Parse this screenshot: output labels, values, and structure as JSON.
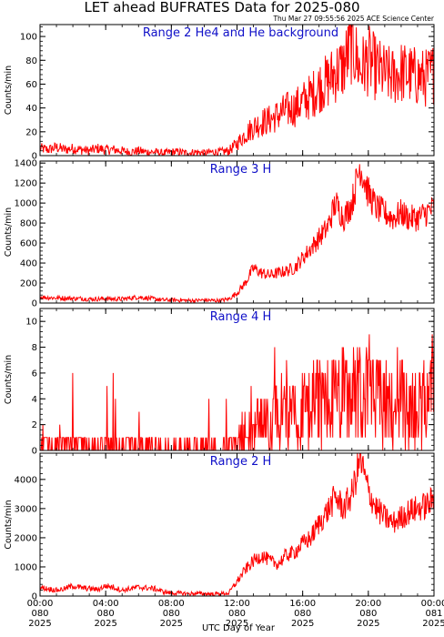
{
  "title": "LET ahead BUFRATES Data for 2025-080",
  "timestamp": "Thu Mar 27 09:55:56 2025 ACE Science Center",
  "xlabel": "UTC Day of Year",
  "colors": {
    "trace": "#ff0000",
    "panel_label": "#1010c8",
    "axes": "#000000"
  },
  "xticks": [
    {
      "t": 0,
      "time": "00:00",
      "doy": "080",
      "year": "2025"
    },
    {
      "t": 4,
      "time": "04:00",
      "doy": "080",
      "year": "2025"
    },
    {
      "t": 8,
      "time": "08:00",
      "doy": "080",
      "year": "2025"
    },
    {
      "t": 12,
      "time": "12:00",
      "doy": "080",
      "year": "2025"
    },
    {
      "t": 16,
      "time": "16:00",
      "doy": "080",
      "year": "2025"
    },
    {
      "t": 20,
      "time": "20:00",
      "doy": "080",
      "year": "2025"
    },
    {
      "t": 24,
      "time": "00:00",
      "doy": "081",
      "year": "2025"
    }
  ],
  "chart_data": [
    {
      "type": "line",
      "title": "Range 2 He4 and He background",
      "ylabel": "Counts/min",
      "ylim": [
        0,
        110
      ],
      "yticks": [
        0,
        20,
        40,
        60,
        80,
        100
      ],
      "xlim": [
        0,
        24
      ],
      "x": [
        0,
        0.5,
        1,
        1.5,
        2,
        2.5,
        3,
        3.5,
        4,
        4.5,
        5,
        5.5,
        6,
        6.5,
        7,
        7.5,
        8,
        8.5,
        9,
        9.5,
        10,
        10.5,
        11,
        11.5,
        12,
        12.5,
        13,
        13.5,
        14,
        14.5,
        15,
        15.5,
        16,
        16.5,
        17,
        17.5,
        18,
        18.5,
        19,
        19.5,
        20,
        20.5,
        21,
        21.5,
        22,
        22.5,
        23,
        23.5,
        24
      ],
      "values": [
        6,
        5,
        7,
        5,
        6,
        5,
        4,
        6,
        5,
        5,
        4,
        3,
        4,
        3,
        3,
        2,
        3,
        3,
        2,
        3,
        2,
        3,
        3,
        4,
        10,
        18,
        24,
        28,
        30,
        34,
        38,
        40,
        45,
        50,
        58,
        62,
        70,
        75,
        95,
        72,
        80,
        73,
        68,
        66,
        70,
        68,
        66,
        65,
        70
      ]
    },
    {
      "type": "line",
      "title": "Range 3 H",
      "ylabel": "Counts/min",
      "ylim": [
        0,
        1420
      ],
      "yticks": [
        0,
        200,
        400,
        600,
        800,
        1000,
        1200,
        1400
      ],
      "xlim": [
        0,
        24
      ],
      "x": [
        0,
        0.5,
        1,
        1.5,
        2,
        2.5,
        3,
        3.5,
        4,
        4.5,
        5,
        5.5,
        6,
        6.5,
        7,
        7.5,
        8,
        8.5,
        9,
        9.5,
        10,
        10.5,
        11,
        11.5,
        12,
        12.5,
        13,
        13.5,
        14,
        14.5,
        15,
        15.5,
        16,
        16.5,
        17,
        17.5,
        18,
        18.5,
        19,
        19.5,
        20,
        20.5,
        21,
        21.5,
        22,
        22.5,
        23,
        23.5,
        24
      ],
      "values": [
        60,
        55,
        50,
        50,
        45,
        45,
        40,
        40,
        45,
        40,
        40,
        50,
        60,
        50,
        40,
        30,
        30,
        30,
        25,
        25,
        30,
        25,
        25,
        40,
        100,
        200,
        350,
        300,
        280,
        300,
        320,
        350,
        450,
        550,
        650,
        750,
        1000,
        850,
        1000,
        1380,
        1100,
        950,
        900,
        850,
        900,
        850,
        850,
        900,
        950
      ]
    },
    {
      "type": "line",
      "title": "Range 4 H",
      "ylabel": "Counts/min",
      "ylim": [
        0,
        11
      ],
      "yticks": [
        0,
        2,
        4,
        6,
        8,
        10
      ],
      "xlim": [
        0,
        24
      ],
      "x": [
        0,
        0.5,
        1,
        1.5,
        2,
        2.5,
        3,
        3.5,
        4,
        4.5,
        5,
        5.5,
        6,
        6.5,
        7,
        7.5,
        8,
        8.5,
        9,
        9.5,
        10,
        10.5,
        11,
        11.5,
        12,
        12.5,
        13,
        13.5,
        14,
        14.5,
        15,
        15.5,
        16,
        16.5,
        17,
        17.5,
        18,
        18.5,
        19,
        19.5,
        20,
        20.5,
        21,
        21.5,
        22,
        22.5,
        23,
        23.5,
        24
      ],
      "values": [
        0.8,
        0.6,
        0.7,
        0.5,
        0.6,
        0.5,
        0.5,
        0.5,
        0.5,
        0.5,
        0.4,
        0.4,
        0.4,
        0.4,
        0.4,
        0.3,
        0.3,
        0.3,
        0.3,
        0.3,
        0.3,
        0.3,
        0.4,
        0.5,
        1.0,
        1.5,
        2.0,
        2.0,
        2.2,
        2.3,
        2.5,
        2.7,
        3.0,
        3.2,
        3.5,
        3.5,
        3.7,
        3.8,
        4.2,
        4.0,
        3.8,
        3.6,
        3.5,
        3.4,
        3.5,
        3.4,
        3.3,
        3.3,
        3.5
      ]
    },
    {
      "type": "line",
      "title": "Range 2 H",
      "ylabel": "Counts/min",
      "ylim": [
        0,
        4900
      ],
      "yticks": [
        0,
        1000,
        2000,
        3000,
        4000
      ],
      "xlim": [
        0,
        24
      ],
      "x": [
        0,
        0.5,
        1,
        1.5,
        2,
        2.5,
        3,
        3.5,
        4,
        4.5,
        5,
        5.5,
        6,
        6.5,
        7,
        7.5,
        8,
        8.5,
        9,
        9.5,
        10,
        10.5,
        11,
        11.5,
        12,
        12.5,
        13,
        13.5,
        14,
        14.5,
        15,
        15.5,
        16,
        16.5,
        17,
        17.5,
        18,
        18.5,
        19,
        19.5,
        20,
        20.5,
        21,
        21.5,
        22,
        22.5,
        23,
        23.5,
        24
      ],
      "values": [
        300,
        250,
        200,
        250,
        350,
        280,
        260,
        220,
        350,
        300,
        200,
        250,
        300,
        280,
        250,
        150,
        100,
        100,
        80,
        90,
        80,
        70,
        80,
        100,
        500,
        900,
        1200,
        1400,
        1200,
        1100,
        1400,
        1500,
        1800,
        2000,
        2500,
        2900,
        3400,
        3000,
        3500,
        4700,
        3600,
        3000,
        2700,
        2500,
        2700,
        2900,
        3000,
        3100,
        3300
      ]
    }
  ]
}
